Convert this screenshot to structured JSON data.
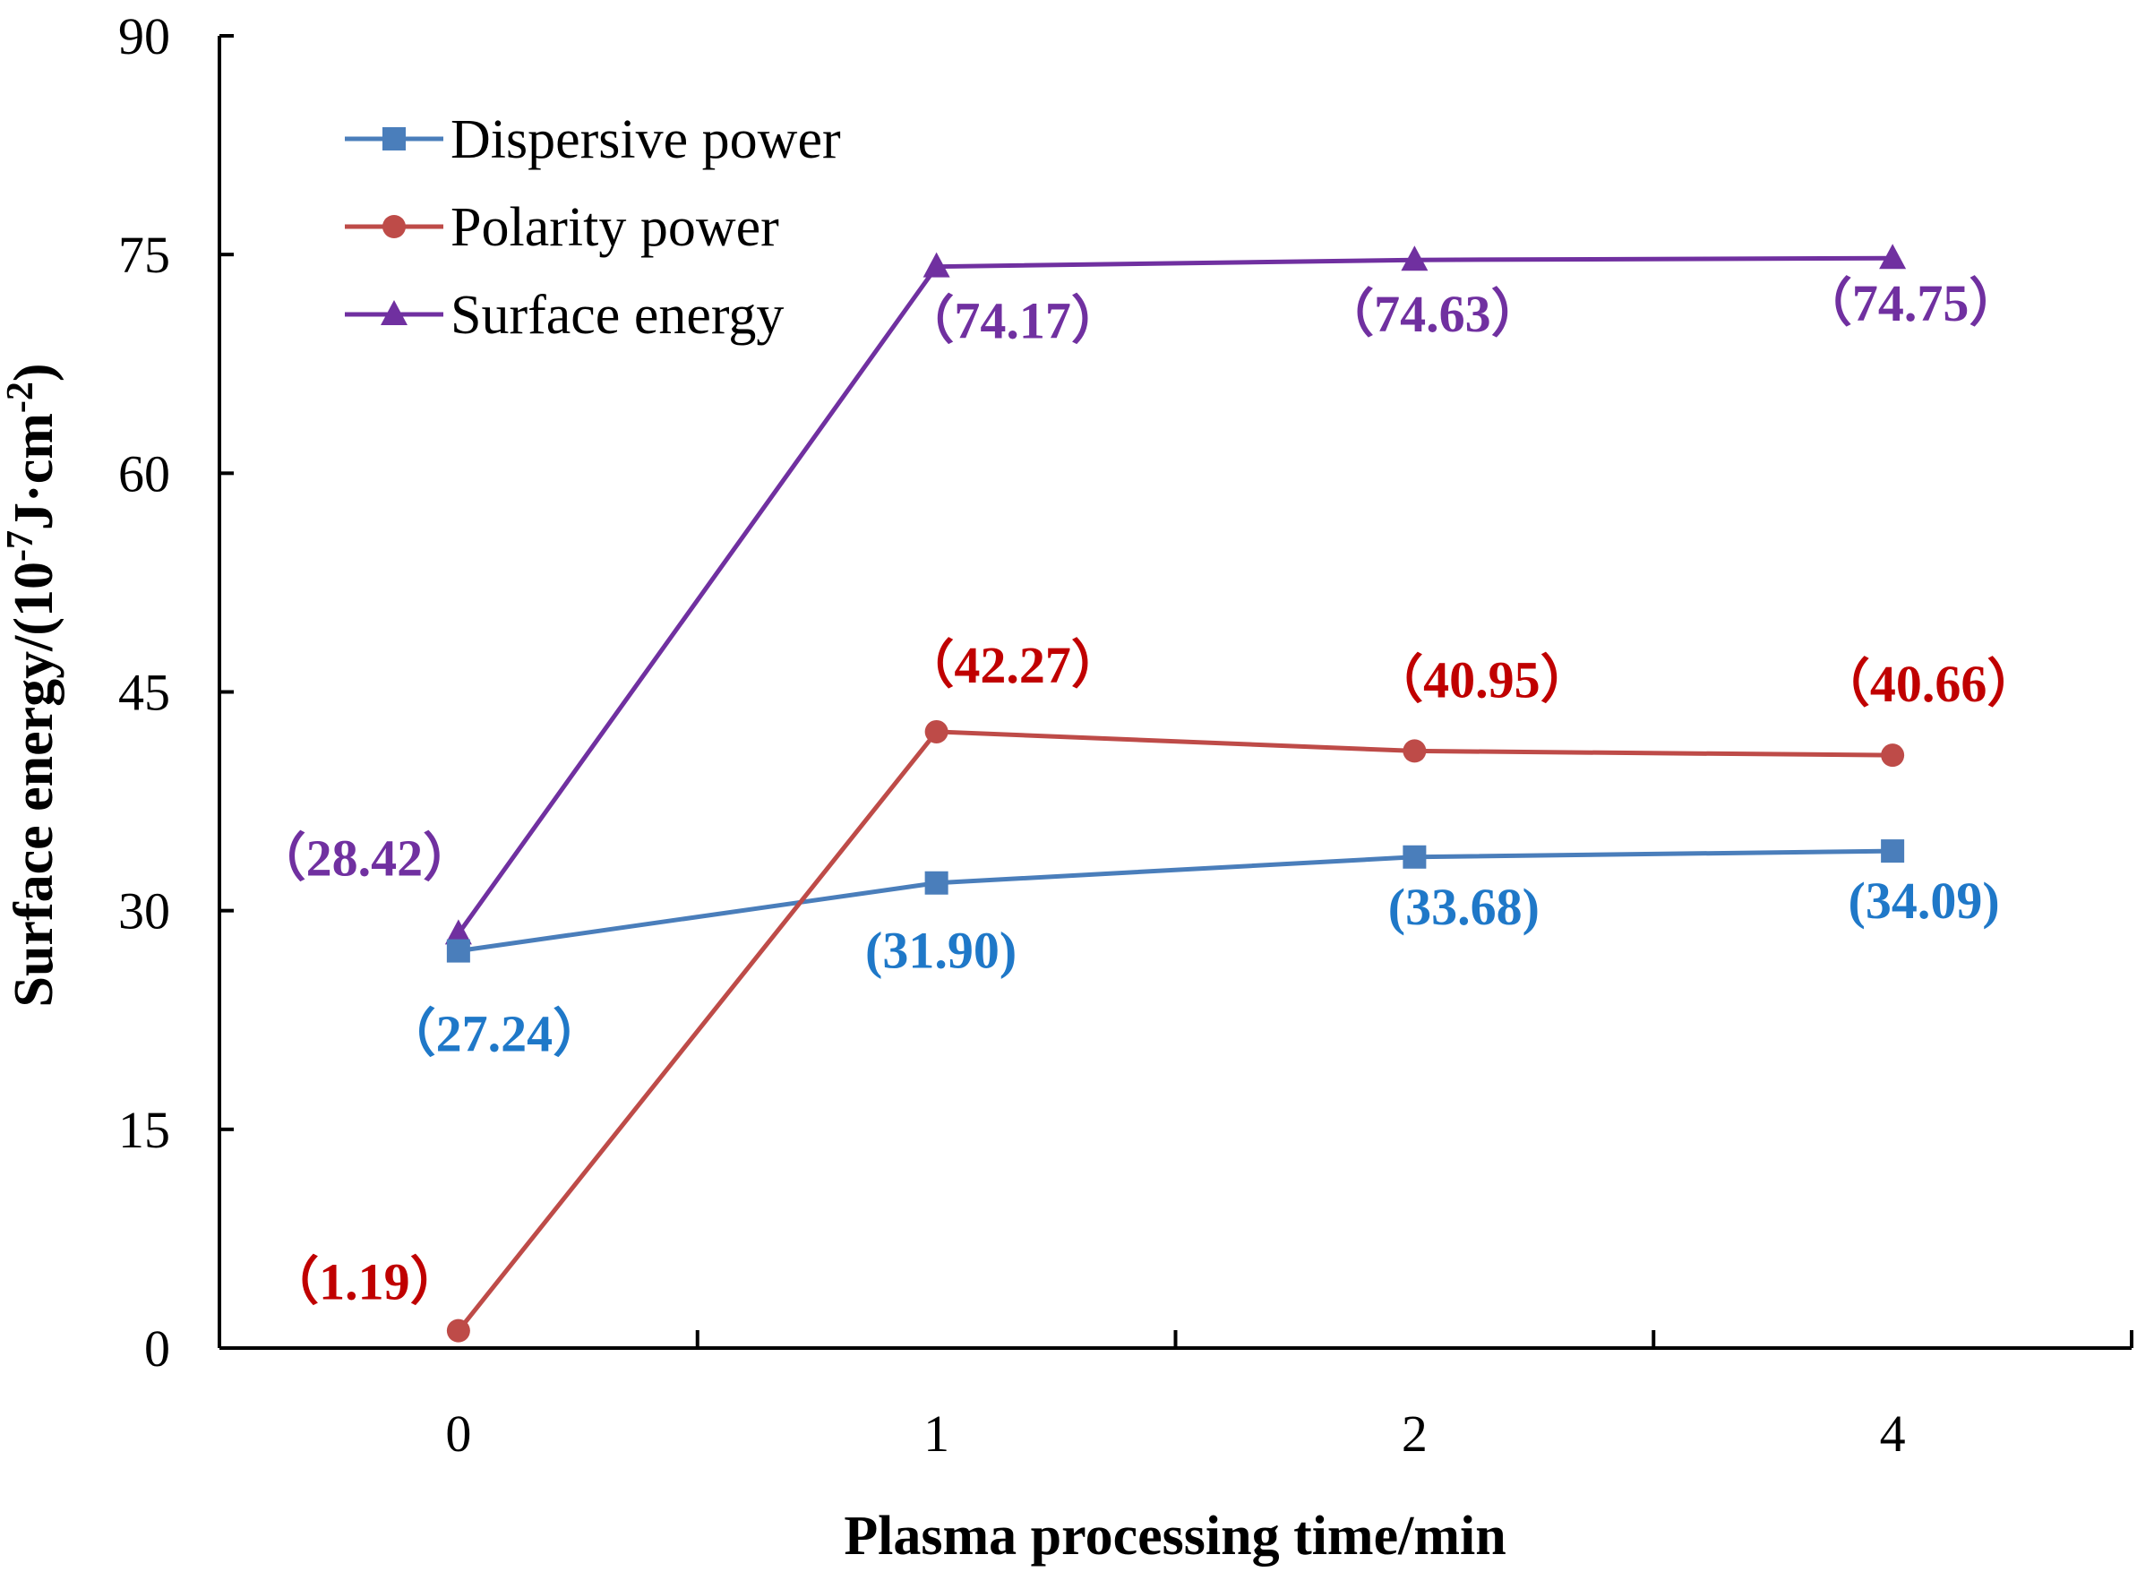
{
  "chart_data": {
    "type": "line",
    "title": "",
    "categories": [
      "0",
      "1",
      "2",
      "4"
    ],
    "xlabel": "Plasma processing time/min",
    "ylabel": "Surface energy/(10",
    "ylabel_exp1": "-7",
    "ylabel_mid": "J·cm",
    "ylabel_exp2": "-2",
    "ylabel_end": ")",
    "ylim": [
      0,
      90
    ],
    "yticks": [
      "0",
      "15",
      "30",
      "45",
      "60",
      "75",
      "90"
    ],
    "grid": false,
    "legend_position": "top-left",
    "series": [
      {
        "name": "Dispersive power",
        "color": "#4a7ebb",
        "label_color": "#1f78c8",
        "marker": "square",
        "values": [
          27.24,
          31.9,
          33.68,
          34.09
        ],
        "labels": [
          "（27.24）",
          "(31.90)",
          "(33.68)",
          "(34.09)"
        ]
      },
      {
        "name": "Polarity power",
        "color": "#be4b48",
        "label_color": "#c00000",
        "marker": "circle",
        "values": [
          1.19,
          42.27,
          40.95,
          40.66
        ],
        "labels": [
          "（1.19）",
          "（42.27）",
          "（40.95）",
          "（40.66）"
        ]
      },
      {
        "name": "Surface energy",
        "color": "#7030a0",
        "label_color": "#7030a0",
        "marker": "triangle",
        "values": [
          28.42,
          74.17,
          74.63,
          74.75
        ],
        "labels": [
          "（28.42）",
          "（74.17）",
          "（74.63）",
          "（74.75）"
        ]
      }
    ]
  }
}
